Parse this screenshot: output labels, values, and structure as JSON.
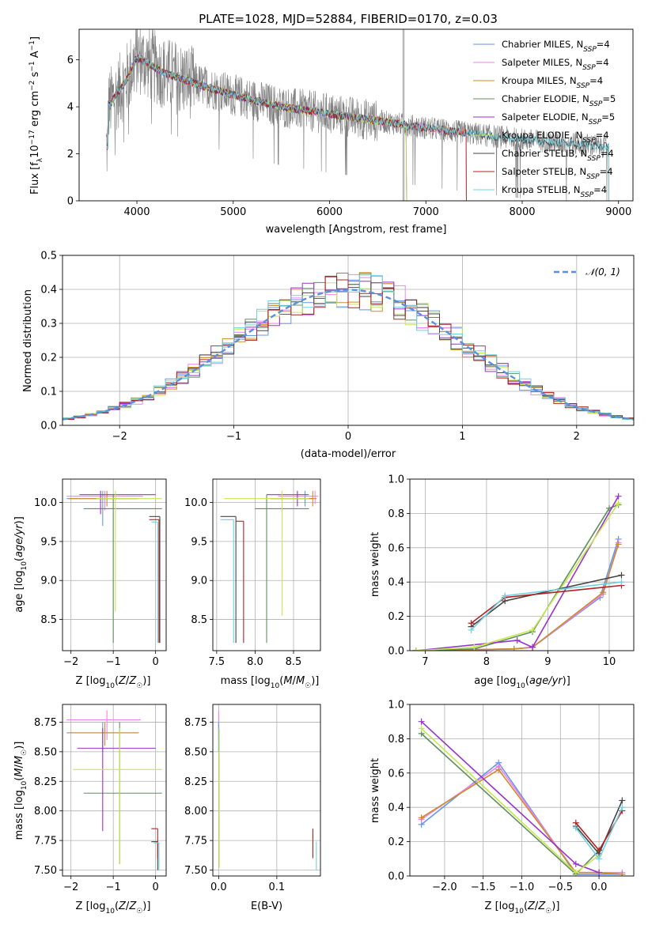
{
  "figure_title": "PLATE=1028, MJD=52884, FIBERID=0170, z=0.03",
  "colors": {
    "Chabrier MILES": "#6495ed",
    "Salpeter MILES": "#ee82ee",
    "Kroupa MILES": "#cd8c2a",
    "Chabrier ELODIE": "#5f8f5f",
    "Salpeter ELODIE": "#9932cc",
    "Kroupa ELODIE": "#c8e650",
    "Chabrier STELIB": "#444444",
    "Salpeter STELIB": "#b22222",
    "Kroupa STELIB": "#70d0e0",
    "data": "#808080",
    "normal_curve": "#5b8fe0"
  },
  "chart_data": [
    {
      "id": "spectrum",
      "type": "line",
      "xlabel": "wavelength [Angstrom, rest frame]",
      "ylabel": "Flux [f_λ10^-17 erg cm^-2 s^-1 A^-1]",
      "xlim": [
        3400,
        9150
      ],
      "ylim": [
        0,
        7.3
      ],
      "xticks": [
        4000,
        5000,
        6000,
        7000,
        8000,
        9000
      ],
      "yticks": [
        0,
        2,
        4,
        6
      ],
      "legend_position": "top-right",
      "legend": [
        {
          "model": "Chabrier MILES",
          "nssp": "4"
        },
        {
          "model": "Salpeter MILES",
          "nssp": "4"
        },
        {
          "model": "Kroupa MILES",
          "nssp": "4"
        },
        {
          "model": "Chabrier ELODIE",
          "nssp": "5"
        },
        {
          "model": "Salpeter ELODIE",
          "nssp": "5"
        },
        {
          "model": "Kroupa ELODIE",
          "nssp": "4"
        },
        {
          "model": "Chabrier STELIB",
          "nssp": "4"
        },
        {
          "model": "Salpeter STELIB",
          "nssp": "4"
        },
        {
          "model": "Kroupa STELIB",
          "nssp": "4"
        }
      ],
      "data_range": [
        3680,
        8900
      ],
      "model_continuum": {
        "x": [
          3700,
          3900,
          4000,
          4100,
          4300,
          4600,
          5000,
          5500,
          6000,
          6500,
          7000,
          7400,
          8000,
          8500,
          8900
        ],
        "y": [
          4.0,
          5.2,
          6.1,
          5.9,
          5.4,
          5.0,
          4.5,
          4.0,
          3.7,
          3.4,
          3.1,
          2.9,
          2.6,
          2.45,
          2.3
        ]
      }
    },
    {
      "id": "residuals",
      "type": "line",
      "xlabel": "(data-model)/error",
      "ylabel": "Normed distribution",
      "xlim": [
        -2.5,
        2.5
      ],
      "ylim": [
        0,
        0.5
      ],
      "xticks": [
        -2,
        -1,
        0,
        1,
        2
      ],
      "yticks": [
        0.0,
        0.1,
        0.2,
        0.3,
        0.4,
        0.5
      ],
      "grid": true,
      "legend_position": "top-right",
      "normal_label": "𝒩(0, 1)",
      "bin_width": 0.1
    },
    {
      "id": "age_vs_Z",
      "type": "scatter",
      "xlabel": "Z [log10(Z/Z☉)]",
      "ylabel": "age [log10(age/yr)]",
      "xlim": [
        -2.2,
        0.25
      ],
      "ylim": [
        8.1,
        10.3
      ],
      "xticks": [
        -2,
        -1,
        0
      ],
      "yticks": [
        8.5,
        9.0,
        9.5,
        10.0
      ],
      "grid": true
    },
    {
      "id": "age_vs_mass",
      "type": "scatter",
      "xlabel": "mass [log10(M/M☉)]",
      "ylabel": "",
      "xlim": [
        7.45,
        8.85
      ],
      "ylim": [
        8.1,
        10.3
      ],
      "xticks": [
        7.5,
        8.0,
        8.5
      ],
      "yticks": [
        8.5,
        9.0,
        9.5,
        10.0
      ],
      "grid": true
    },
    {
      "id": "weight_vs_age",
      "type": "line",
      "xlabel": "age [log10(age/yr)]",
      "ylabel": "mass weight",
      "xlim": [
        6.75,
        10.4
      ],
      "ylim": [
        0,
        1.0
      ],
      "xticks": [
        7,
        8,
        9,
        10
      ],
      "yticks": [
        0.0,
        0.2,
        0.4,
        0.6,
        0.8,
        1.0
      ],
      "grid": true,
      "series": [
        {
          "model": "Chabrier MILES",
          "x": [
            6.85,
            8.45,
            8.75,
            9.85,
            10.15
          ],
          "y": [
            0.0,
            0.01,
            0.02,
            0.31,
            0.65
          ]
        },
        {
          "model": "Salpeter MILES",
          "x": [
            6.85,
            8.45,
            8.75,
            9.9,
            10.15
          ],
          "y": [
            0.0,
            0.01,
            0.02,
            0.33,
            0.63
          ]
        },
        {
          "model": "Kroupa MILES",
          "x": [
            6.85,
            8.45,
            8.75,
            9.9,
            10.15
          ],
          "y": [
            0.0,
            0.01,
            0.02,
            0.34,
            0.62
          ]
        },
        {
          "model": "Chabrier ELODIE",
          "x": [
            6.85,
            7.8,
            8.75,
            10.0,
            10.15
          ],
          "y": [
            0.0,
            0.01,
            0.11,
            0.83,
            0.85
          ]
        },
        {
          "model": "Salpeter ELODIE",
          "x": [
            6.85,
            8.5,
            8.75,
            10.15
          ],
          "y": [
            0.0,
            0.06,
            0.02,
            0.9
          ]
        },
        {
          "model": "Kroupa ELODIE",
          "x": [
            6.85,
            7.8,
            8.75,
            10.15
          ],
          "y": [
            0.0,
            0.02,
            0.12,
            0.86
          ]
        },
        {
          "model": "Chabrier STELIB",
          "x": [
            7.75,
            8.3,
            10.2
          ],
          "y": [
            0.14,
            0.29,
            0.44
          ]
        },
        {
          "model": "Salpeter STELIB",
          "x": [
            7.75,
            8.3,
            10.2
          ],
          "y": [
            0.16,
            0.31,
            0.38
          ]
        },
        {
          "model": "Kroupa STELIB",
          "x": [
            7.75,
            8.3,
            10.2
          ],
          "y": [
            0.12,
            0.32,
            0.4
          ]
        }
      ]
    },
    {
      "id": "mass_vs_Z",
      "type": "scatter",
      "xlabel": "Z [log10(Z/Z☉)]",
      "ylabel": "mass [log10(M/M☉)]",
      "xlim": [
        -2.2,
        0.25
      ],
      "ylim": [
        7.45,
        8.9
      ],
      "xticks": [
        -2,
        -1,
        0
      ],
      "yticks": [
        7.5,
        7.75,
        8.0,
        8.25,
        8.5,
        8.75
      ],
      "grid": true
    },
    {
      "id": "mass_vs_EBV",
      "type": "scatter",
      "xlabel": "E(B-V)",
      "ylabel": "",
      "xlim": [
        -0.01,
        0.175
      ],
      "ylim": [
        7.45,
        8.9
      ],
      "xticks": [
        0.0,
        0.1
      ],
      "yticks": [
        7.5,
        7.75,
        8.0,
        8.25,
        8.5,
        8.75
      ],
      "grid": true
    },
    {
      "id": "weight_vs_Z",
      "type": "line",
      "xlabel": "Z [log10(Z/Z☉)]",
      "ylabel": "mass weight",
      "xlim": [
        -2.45,
        0.45
      ],
      "ylim": [
        0,
        1.0
      ],
      "xticks": [
        -2.0,
        -1.5,
        -1.0,
        -0.5,
        0.0
      ],
      "yticks": [
        0.0,
        0.2,
        0.4,
        0.6,
        0.8,
        1.0
      ],
      "grid": true,
      "series": [
        {
          "model": "Chabrier MILES",
          "x": [
            -2.3,
            -1.3,
            -0.3,
            0.0,
            0.3
          ],
          "y": [
            0.3,
            0.66,
            0.01,
            0.01,
            0.01
          ]
        },
        {
          "model": "Salpeter MILES",
          "x": [
            -2.3,
            -1.3,
            -0.3,
            0.0,
            0.3
          ],
          "y": [
            0.33,
            0.64,
            0.02,
            0.02,
            0.02
          ]
        },
        {
          "model": "Kroupa MILES",
          "x": [
            -2.3,
            -1.3,
            -0.3,
            0.0,
            0.3
          ],
          "y": [
            0.34,
            0.62,
            0.02,
            0.02,
            0.01
          ]
        },
        {
          "model": "Chabrier ELODIE",
          "x": [
            -2.3,
            -0.3,
            0.0
          ],
          "y": [
            0.83,
            0.01,
            0.15
          ]
        },
        {
          "model": "Salpeter ELODIE",
          "x": [
            -2.3,
            -0.3,
            0.0
          ],
          "y": [
            0.9,
            0.07,
            0.02
          ]
        },
        {
          "model": "Kroupa ELODIE",
          "x": [
            -2.3,
            -0.3,
            0.0
          ],
          "y": [
            0.86,
            0.02,
            0.12
          ]
        },
        {
          "model": "Chabrier STELIB",
          "x": [
            -0.3,
            0.0,
            0.3
          ],
          "y": [
            0.29,
            0.13,
            0.44
          ]
        },
        {
          "model": "Salpeter STELIB",
          "x": [
            -0.3,
            0.0,
            0.3
          ],
          "y": [
            0.31,
            0.15,
            0.38
          ]
        },
        {
          "model": "Kroupa STELIB",
          "x": [
            -0.3,
            0.0,
            0.3
          ],
          "y": [
            0.28,
            0.1,
            0.4
          ]
        }
      ]
    }
  ]
}
